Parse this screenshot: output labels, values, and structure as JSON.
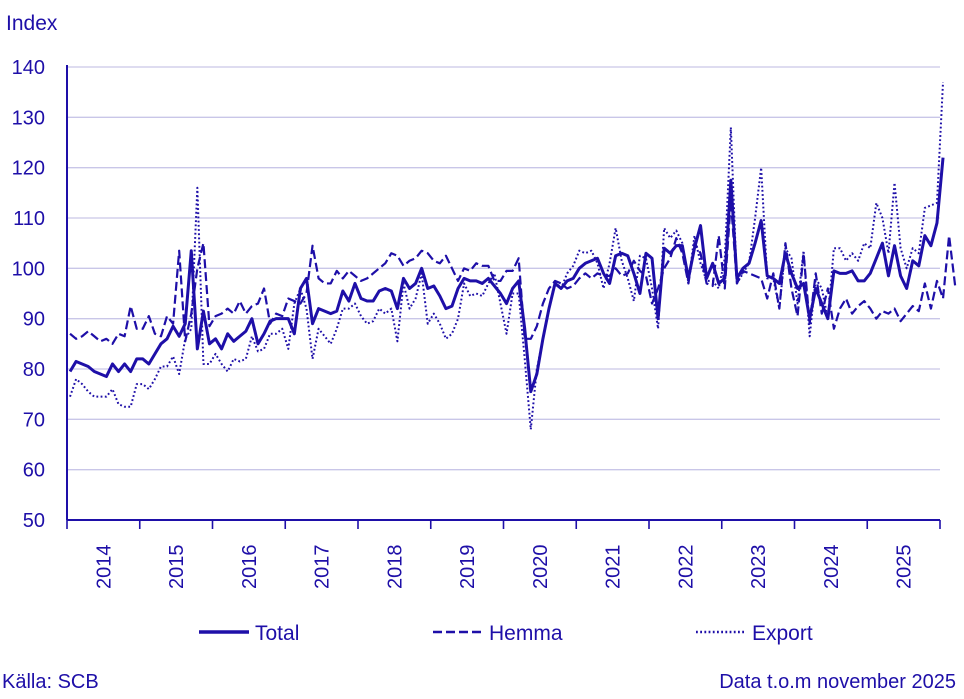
{
  "colors": {
    "ink": "#1e0fa8",
    "grid": "#c9c6e8",
    "background": "#ffffff"
  },
  "footer": {
    "source": "Källa: SCB",
    "data_info": "Data t.o.m november 2025"
  },
  "chart_data": {
    "type": "line",
    "title": "",
    "ylabel": "Index",
    "xlabel": "",
    "ylim": [
      50,
      140
    ],
    "yticks": [
      50,
      60,
      70,
      80,
      90,
      100,
      110,
      120,
      130,
      140
    ],
    "years": [
      "2014",
      "2015",
      "2016",
      "2017",
      "2018",
      "2019",
      "2020",
      "2021",
      "2022",
      "2023",
      "2024",
      "2025"
    ],
    "x_unit": "month index (0 = Jan 2014, 142 = Nov 2025)",
    "grid": true,
    "legend_position": "bottom",
    "series": [
      {
        "name": "Total",
        "style": "solid",
        "values": [
          79.5,
          81.5,
          81,
          80.5,
          79.5,
          79,
          78.5,
          81,
          79.5,
          81,
          79.5,
          82,
          82,
          81,
          83,
          85,
          86,
          88.5,
          86.5,
          89,
          103.5,
          84,
          91.5,
          85,
          86,
          84,
          87,
          85.5,
          86.5,
          87.5,
          90,
          85,
          87,
          89.5,
          90,
          90,
          90,
          87,
          96,
          98,
          89,
          92,
          91.5,
          91,
          91.5,
          95.5,
          93.5,
          97,
          94,
          93.5,
          93.5,
          95.5,
          96,
          95.5,
          92,
          98,
          96,
          97,
          100,
          96,
          96.5,
          94.5,
          92,
          92.5,
          96,
          98,
          97.5,
          97.5,
          97,
          98,
          96.5,
          95,
          93,
          96,
          97.5,
          88,
          75.5,
          79,
          86,
          92,
          97,
          96,
          97.5,
          98,
          100,
          101,
          101.5,
          102,
          99,
          97,
          102.5,
          103,
          102.5,
          99,
          95,
          103,
          102,
          90,
          104,
          103,
          104.5,
          104.5,
          98,
          104,
          108.5,
          98,
          101,
          97,
          98,
          117.5,
          98,
          100,
          101,
          105,
          109.5,
          98.5,
          98,
          97,
          103,
          99,
          96,
          97,
          90,
          96,
          93,
          90,
          99.5,
          99,
          99,
          99.5,
          97.5,
          97.5,
          99,
          102,
          105,
          98.5,
          104.5,
          98.5,
          96,
          101.5,
          100.5,
          106.5,
          104.5,
          109,
          122
        ]
      },
      {
        "name": "Hemma",
        "style": "dashed",
        "values": [
          87,
          86,
          86.5,
          87.5,
          86.5,
          85.5,
          86,
          85,
          87,
          86.5,
          92.5,
          88,
          88,
          90.5,
          87,
          86.5,
          90.5,
          89,
          103.5,
          85.5,
          91,
          100,
          105,
          88.5,
          90.5,
          91,
          92,
          91,
          93.5,
          91,
          92.5,
          93,
          96,
          89,
          91,
          90.5,
          94,
          93.5,
          93,
          95,
          104.5,
          98,
          97,
          97,
          99.5,
          98,
          99.5,
          98.5,
          97.5,
          98,
          99,
          100,
          101,
          103,
          102.5,
          100.5,
          101.5,
          102,
          103.5,
          103,
          101.5,
          101,
          102.5,
          100,
          97.5,
          100,
          99.5,
          101,
          100.5,
          100.5,
          97.5,
          97.5,
          99.5,
          99.5,
          102,
          86,
          86,
          88.5,
          93,
          96,
          97.5,
          97,
          96,
          96.5,
          98,
          99,
          98,
          99,
          98.5,
          98.5,
          100,
          98.5,
          99,
          101.5,
          99.5,
          98.5,
          93,
          96,
          100,
          102,
          106,
          103,
          97,
          105,
          103,
          97,
          96.5,
          106.5,
          96,
          113.5,
          97,
          99.5,
          99,
          98.5,
          98,
          94,
          99,
          92,
          105,
          96,
          90.5,
          103,
          89,
          99,
          91,
          96,
          88,
          92,
          94,
          91,
          92.5,
          93.5,
          92,
          90,
          91.5,
          91,
          92,
          89.5,
          91,
          92.5,
          91.5,
          97,
          92,
          97.5,
          94,
          106.5,
          96.5
        ]
      },
      {
        "name": "Export",
        "style": "dotted",
        "values": [
          74.5,
          78,
          77,
          75.5,
          74.5,
          74.5,
          74.5,
          76,
          73,
          72.5,
          72.5,
          77,
          77,
          76,
          78,
          80.5,
          80.5,
          82.5,
          79,
          86,
          88,
          116,
          81,
          81,
          83,
          81,
          79.5,
          82,
          81.5,
          82,
          86.5,
          83.5,
          84,
          87,
          87,
          88,
          84,
          93,
          96,
          92,
          82,
          88,
          86.5,
          85,
          88,
          92,
          92,
          93,
          90.5,
          89,
          89.5,
          92,
          91,
          92,
          85.5,
          97,
          92,
          94,
          99,
          89,
          91,
          89,
          86,
          87,
          90,
          97,
          94.5,
          95,
          94.5,
          97,
          99,
          93,
          87,
          95,
          95,
          82,
          68,
          80,
          86,
          92,
          97.5,
          96,
          99,
          100.5,
          103.5,
          103,
          103.5,
          101,
          96,
          101,
          108,
          101.5,
          98,
          93.5,
          102.5,
          102,
          96,
          88,
          108,
          106,
          107.5,
          105,
          97,
          106.5,
          101,
          97.5,
          97.5,
          96,
          102,
          128,
          97,
          99,
          101,
          110,
          120,
          98,
          98,
          92,
          104,
          102,
          93,
          103.5,
          86.5,
          98,
          96,
          90,
          104,
          104,
          101.5,
          103,
          101.5,
          105,
          104,
          113,
          110,
          103,
          117,
          104,
          100,
          104,
          103,
          112,
          112.5,
          113,
          137
        ]
      }
    ]
  }
}
